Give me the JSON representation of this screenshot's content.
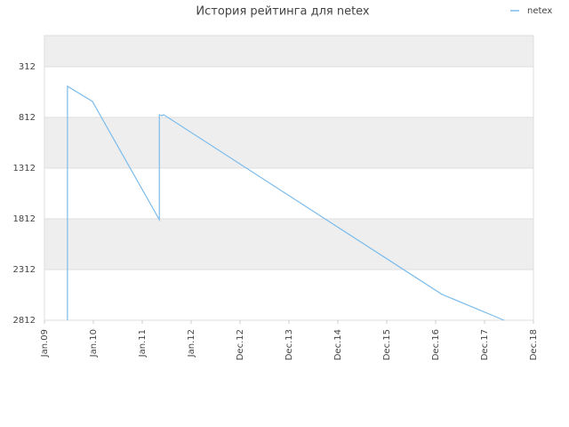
{
  "chart_data": {
    "type": "line",
    "title": "История рейтинга для netex",
    "xlim": [
      0,
      10
    ],
    "xticks": [
      {
        "value": 0,
        "label": "Jan.09"
      },
      {
        "value": 1,
        "label": "Jan.10"
      },
      {
        "value": 2,
        "label": "Jan.11"
      },
      {
        "value": 3,
        "label": "Jan.12"
      },
      {
        "value": 4,
        "label": "Dec.12"
      },
      {
        "value": 5,
        "label": "Dec.13"
      },
      {
        "value": 6,
        "label": "Dec.14"
      },
      {
        "value": 7,
        "label": "Dec.15"
      },
      {
        "value": 8,
        "label": "Dec.16"
      },
      {
        "value": 9,
        "label": "Dec.17"
      },
      {
        "value": 10,
        "label": "Dec.18"
      }
    ],
    "ylim": [
      5,
      2812
    ],
    "invert_y": true,
    "yticks": [
      312,
      812,
      1312,
      1812,
      2312,
      2812
    ],
    "legend": "top-right",
    "series": [
      {
        "name": "netex",
        "color": "#7cbcec",
        "x": [
          0.47,
          0.47,
          0.98,
          2.35,
          2.35,
          2.4,
          2.44,
          8.13,
          9.4
        ],
        "values": [
          2812,
          505,
          654,
          1821,
          786,
          794,
          786,
          2557,
          2812
        ]
      }
    ]
  }
}
